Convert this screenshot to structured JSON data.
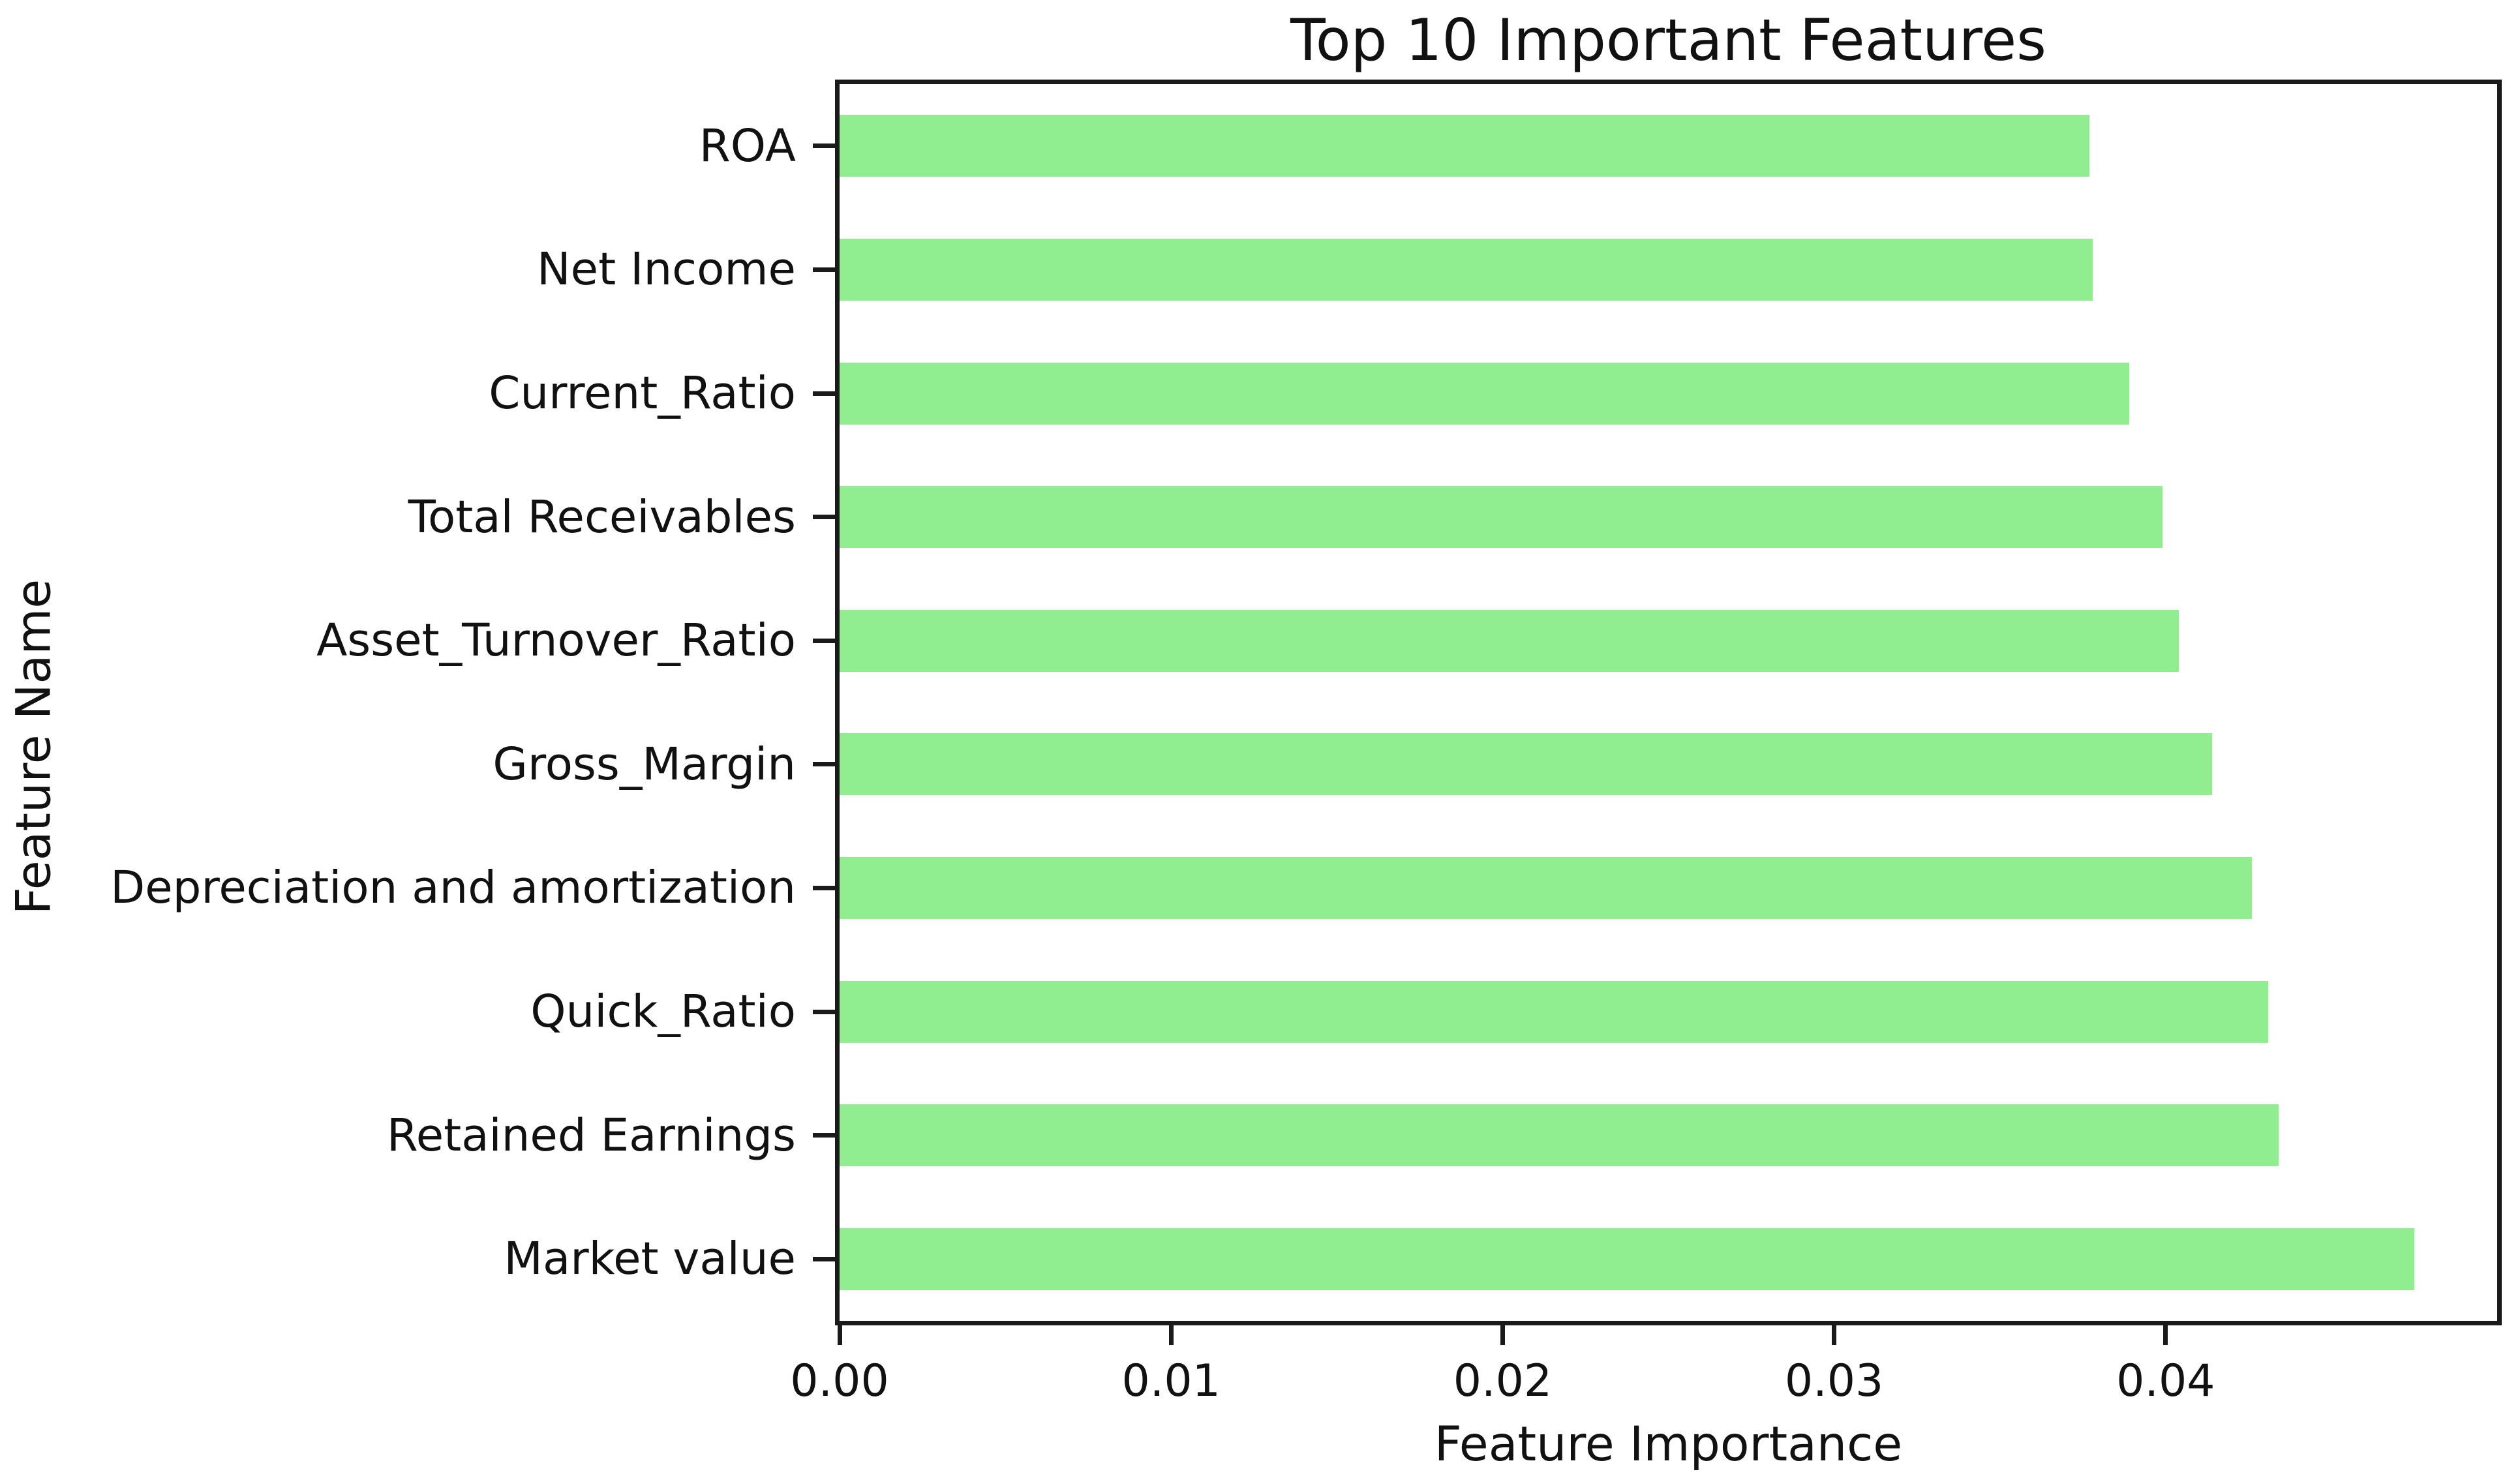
{
  "chart_data": {
    "type": "bar",
    "orientation": "horizontal",
    "title": "Top 10 Important Features",
    "xlabel": "Feature Importance",
    "ylabel": "Feature Name",
    "categories": [
      "ROA",
      "Net Income",
      "Current_Ratio",
      "Total Receivables",
      "Asset_Turnover_Ratio",
      "Gross_Margin",
      "Depreciation and amortization",
      "Quick_Ratio",
      "Retained Earnings",
      "Market value"
    ],
    "values": [
      0.0377,
      0.0378,
      0.0389,
      0.0399,
      0.0404,
      0.0414,
      0.0426,
      0.0431,
      0.0434,
      0.0475
    ],
    "xlim": [
      0,
      0.05
    ],
    "xticks": [
      "0.00",
      "0.01",
      "0.02",
      "0.03",
      "0.04"
    ],
    "xtick_values": [
      0.0,
      0.01,
      0.02,
      0.03,
      0.04
    ],
    "bar_color": "#90EE90",
    "spine_color": "#1a1a1a",
    "grid": false,
    "legend": null
  }
}
